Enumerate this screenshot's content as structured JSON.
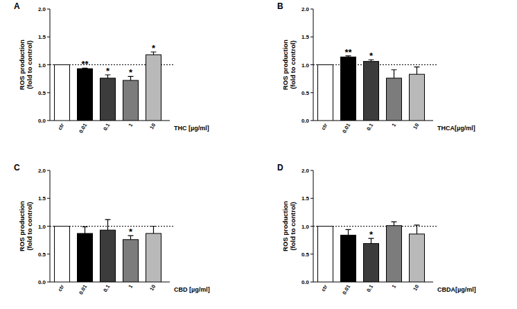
{
  "chart_data": [
    {
      "type": "bar",
      "title": "A",
      "ylabel": "ROS production\n(fold to control)",
      "xlabel": "THC [µg/ml]",
      "categories": [
        "ctr",
        "0.01",
        "0.1",
        "1",
        "10"
      ],
      "values": [
        1.0,
        0.93,
        0.76,
        0.72,
        1.18
      ],
      "errors": [
        null,
        0.01,
        0.06,
        0.07,
        0.05
      ],
      "significance": [
        null,
        "**",
        "*",
        "*",
        "*"
      ],
      "colors": [
        "#ffffff",
        "#000000",
        "#3c3c3c",
        "#7c7c7c",
        "#b9b9b9"
      ],
      "reference_line": 1.0,
      "ylim": [
        0,
        2
      ],
      "yticks": [
        {
          "value": 0,
          "label": "0.0"
        },
        {
          "value": 0.5,
          "label": "0.5"
        },
        {
          "value": 1,
          "label": "1.0"
        },
        {
          "value": 1.5,
          "label": "1.5"
        },
        {
          "value": 2,
          "label": "2.0"
        }
      ]
    },
    {
      "type": "bar",
      "title": "B",
      "ylabel": "ROS production\n(fold to control)",
      "xlabel": "THCA[µg/ml]",
      "categories": [
        "ctr",
        "0.01",
        "0.1",
        "1",
        "10"
      ],
      "values": [
        1.0,
        1.14,
        1.06,
        0.76,
        0.83
      ],
      "errors": [
        null,
        0.02,
        0.03,
        0.15,
        0.13
      ],
      "significance": [
        null,
        "**",
        "*",
        null,
        null
      ],
      "colors": [
        "#ffffff",
        "#000000",
        "#3c3c3c",
        "#7c7c7c",
        "#b9b9b9"
      ],
      "reference_line": 1.0,
      "ylim": [
        0,
        2
      ],
      "yticks": [
        {
          "value": 0,
          "label": "0.0"
        },
        {
          "value": 0.5,
          "label": "0.5"
        },
        {
          "value": 1,
          "label": "1.0"
        },
        {
          "value": 1.5,
          "label": "1.5"
        },
        {
          "value": 2,
          "label": "2.0"
        }
      ]
    },
    {
      "type": "bar",
      "title": "C",
      "ylabel": "ROS production\n(fold to control)",
      "xlabel": "CBD [µg/ml]",
      "categories": [
        "ctr",
        "0.01",
        "0.1",
        "1",
        "10"
      ],
      "values": [
        1.0,
        0.87,
        0.93,
        0.76,
        0.87
      ],
      "errors": [
        null,
        0.12,
        0.19,
        0.07,
        0.13
      ],
      "significance": [
        null,
        null,
        null,
        "*",
        null
      ],
      "colors": [
        "#ffffff",
        "#000000",
        "#3c3c3c",
        "#7c7c7c",
        "#b9b9b9"
      ],
      "reference_line": 1.0,
      "ylim": [
        0,
        2
      ],
      "yticks": [
        {
          "value": 0,
          "label": "0.0"
        },
        {
          "value": 0.5,
          "label": "0.5"
        },
        {
          "value": 1,
          "label": "1.0"
        },
        {
          "value": 1.5,
          "label": "1.5"
        },
        {
          "value": 2,
          "label": "2.0"
        }
      ]
    },
    {
      "type": "bar",
      "title": "D",
      "ylabel": "ROS production\n(fold to control)",
      "xlabel": "CBDA[µg/ml]",
      "categories": [
        "ctr",
        "0.01",
        "0.1",
        "1",
        "10"
      ],
      "values": [
        1.0,
        0.84,
        0.69,
        1.01,
        0.86
      ],
      "errors": [
        null,
        0.1,
        0.09,
        0.07,
        0.16
      ],
      "significance": [
        null,
        null,
        "*",
        null,
        null
      ],
      "colors": [
        "#ffffff",
        "#000000",
        "#3c3c3c",
        "#7c7c7c",
        "#b9b9b9"
      ],
      "reference_line": 1.0,
      "ylim": [
        0,
        2
      ],
      "yticks": [
        {
          "value": 0,
          "label": "0.0"
        },
        {
          "value": 0.5,
          "label": "0.5"
        },
        {
          "value": 1,
          "label": "1.0"
        },
        {
          "value": 1.5,
          "label": "1.5"
        },
        {
          "value": 2,
          "label": "2.0"
        }
      ]
    }
  ]
}
